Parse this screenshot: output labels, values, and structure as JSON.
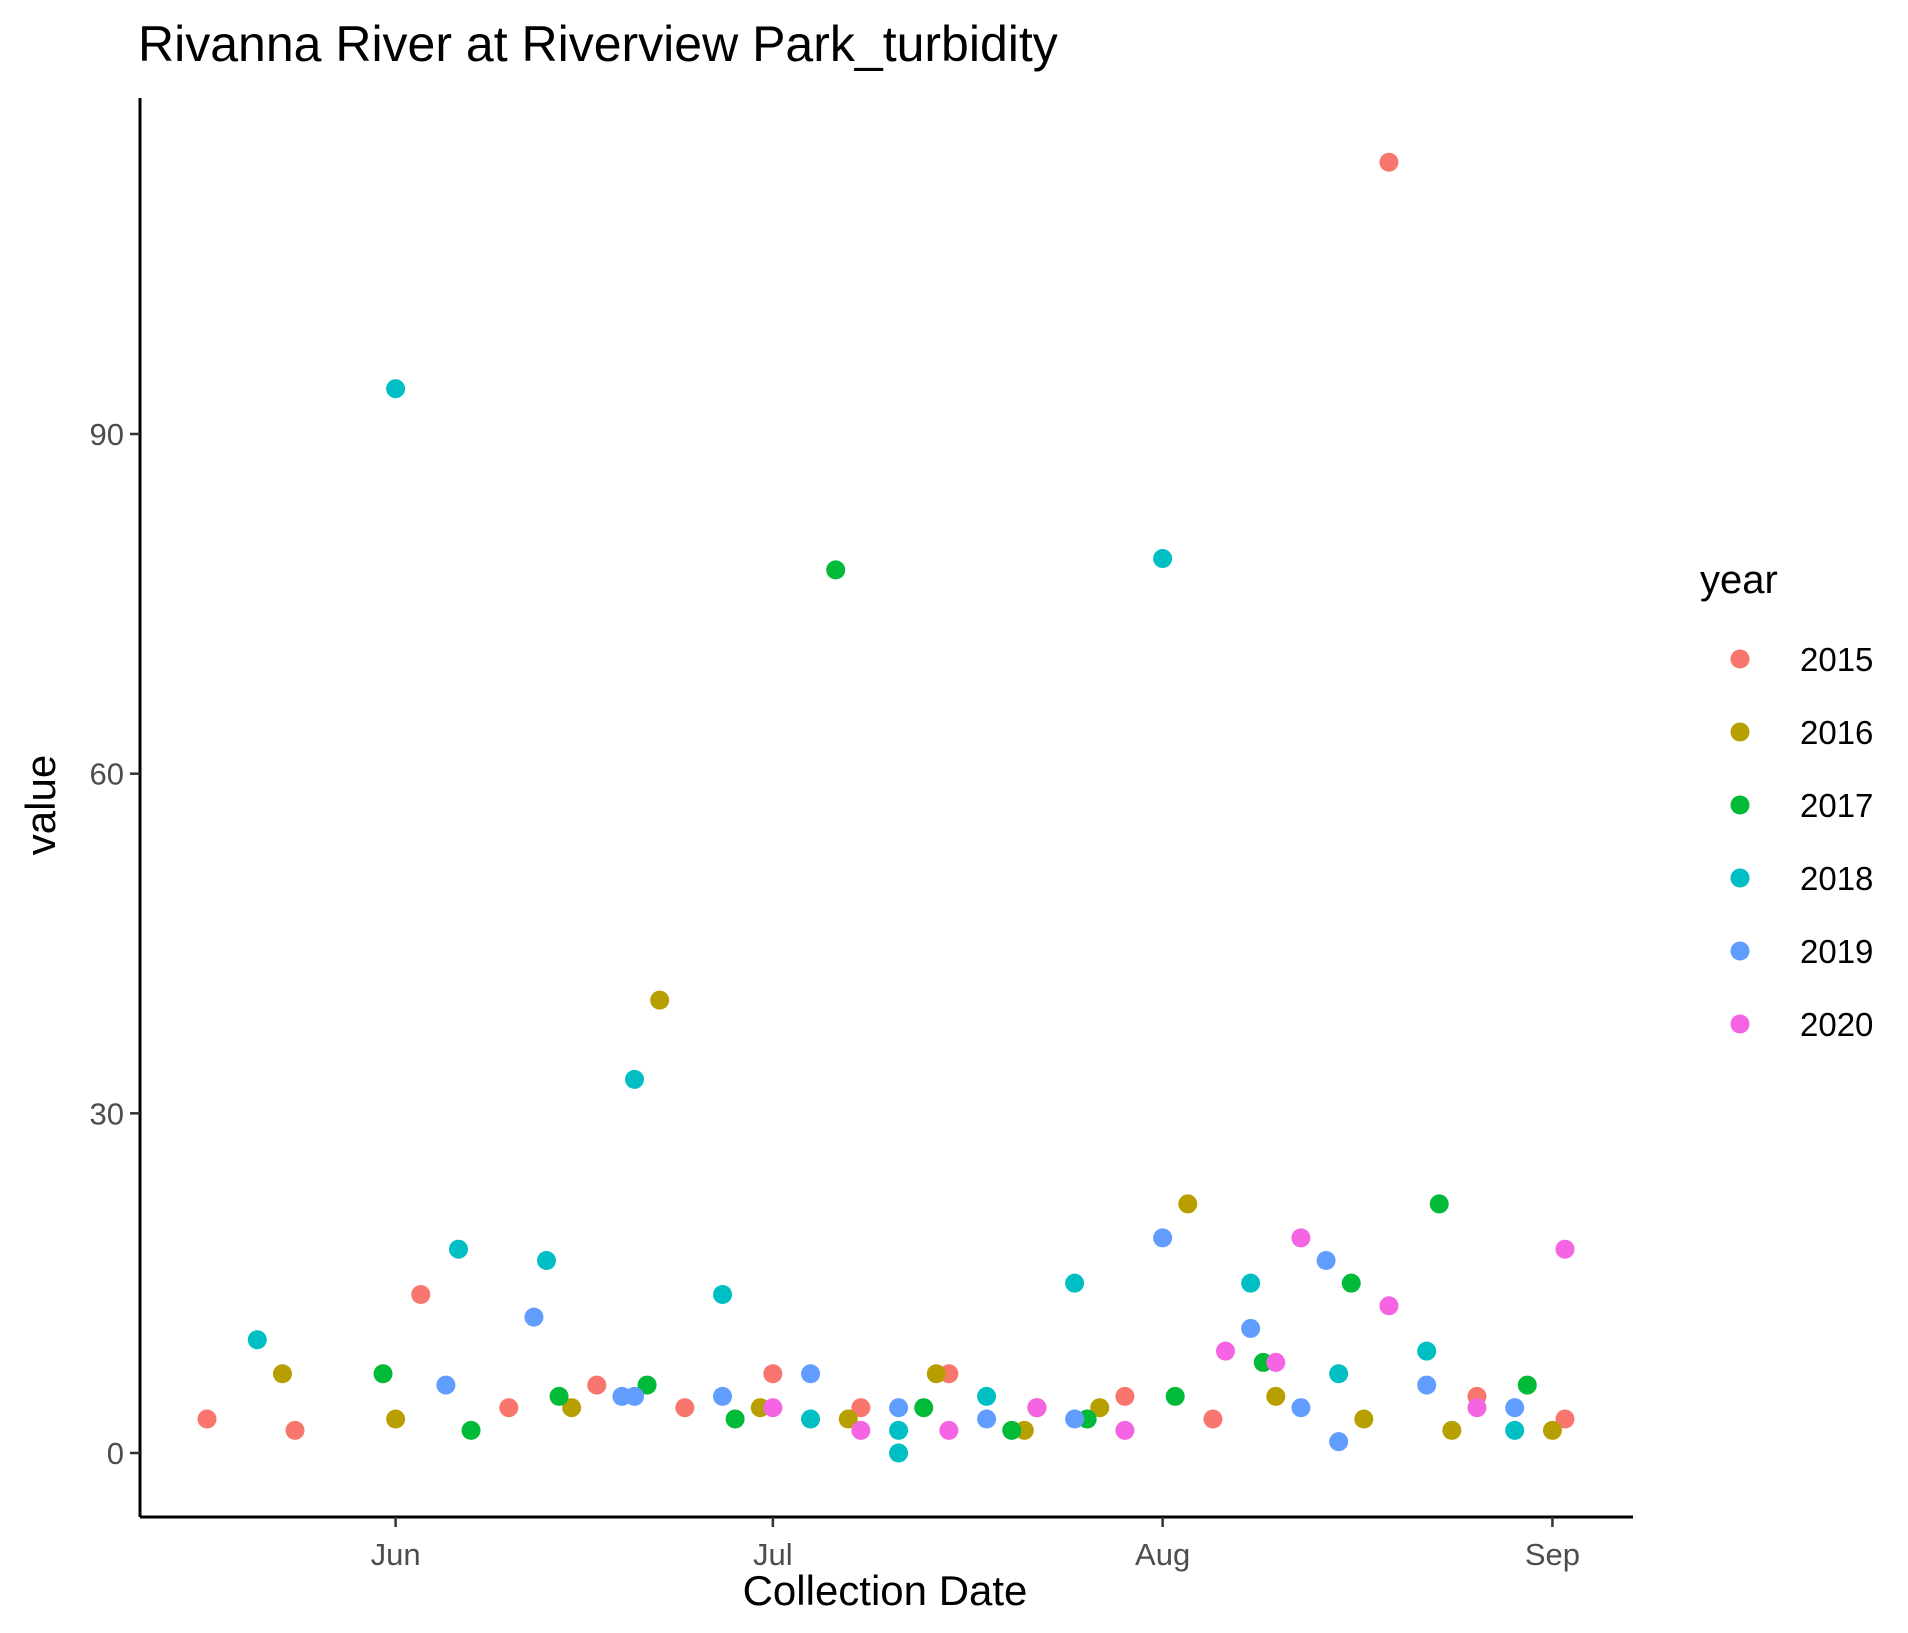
{
  "chart_data": {
    "type": "scatter",
    "title": "Rivanna River at Riverview Park_turbidity",
    "xlabel": "Collection Date",
    "ylabel": "value",
    "x_axis_type": "date (day of year, month ticks)",
    "x_ticks": [
      {
        "label": "Jun",
        "date": "06-01"
      },
      {
        "label": "Jul",
        "date": "07-01"
      },
      {
        "label": "Aug",
        "date": "08-01"
      },
      {
        "label": "Sep",
        "date": "09-01"
      }
    ],
    "y_ticks": [
      0,
      30,
      60,
      90
    ],
    "xlim": [
      "05-20",
      "09-04"
    ],
    "ylim": [
      -6,
      119
    ],
    "grid": false,
    "legend": {
      "title": "year",
      "position": "right"
    },
    "series": [
      {
        "name": "2015",
        "color": "#F8766D",
        "points": [
          {
            "x": "05-17",
            "y": 3
          },
          {
            "x": "05-24",
            "y": 2
          },
          {
            "x": "06-03",
            "y": 14
          },
          {
            "x": "06-10",
            "y": 4
          },
          {
            "x": "06-17",
            "y": 6
          },
          {
            "x": "06-24",
            "y": 4
          },
          {
            "x": "07-01",
            "y": 7
          },
          {
            "x": "07-08",
            "y": 4
          },
          {
            "x": "07-15",
            "y": 7
          },
          {
            "x": "07-22",
            "y": 4
          },
          {
            "x": "07-29",
            "y": 5
          },
          {
            "x": "08-05",
            "y": 3
          },
          {
            "x": "08-19",
            "y": 114
          },
          {
            "x": "08-26",
            "y": 5
          },
          {
            "x": "09-02",
            "y": 3
          }
        ]
      },
      {
        "name": "2016",
        "color": "#B79F00",
        "points": [
          {
            "x": "05-23",
            "y": 7
          },
          {
            "x": "06-01",
            "y": 3
          },
          {
            "x": "06-15",
            "y": 4
          },
          {
            "x": "06-22",
            "y": 40
          },
          {
            "x": "06-30",
            "y": 4
          },
          {
            "x": "07-07",
            "y": 3
          },
          {
            "x": "07-14",
            "y": 7
          },
          {
            "x": "07-21",
            "y": 2
          },
          {
            "x": "07-22",
            "y": 4
          },
          {
            "x": "07-27",
            "y": 4
          },
          {
            "x": "08-03",
            "y": 22
          },
          {
            "x": "08-10",
            "y": 5
          },
          {
            "x": "08-17",
            "y": 3
          },
          {
            "x": "08-24",
            "y": 2
          },
          {
            "x": "09-01",
            "y": 2
          }
        ]
      },
      {
        "name": "2017",
        "color": "#00BA38",
        "points": [
          {
            "x": "05-31",
            "y": 7
          },
          {
            "x": "06-07",
            "y": 2
          },
          {
            "x": "06-14",
            "y": 5
          },
          {
            "x": "06-21",
            "y": 6
          },
          {
            "x": "06-28",
            "y": 3
          },
          {
            "x": "07-06",
            "y": 78
          },
          {
            "x": "07-13",
            "y": 4
          },
          {
            "x": "07-20",
            "y": 2
          },
          {
            "x": "07-26",
            "y": 3
          },
          {
            "x": "08-02",
            "y": 5
          },
          {
            "x": "08-09",
            "y": 8
          },
          {
            "x": "08-16",
            "y": 15
          },
          {
            "x": "08-23",
            "y": 22
          },
          {
            "x": "08-30",
            "y": 6
          }
        ]
      },
      {
        "name": "2018",
        "color": "#00BFC4",
        "points": [
          {
            "x": "05-21",
            "y": 10
          },
          {
            "x": "06-01",
            "y": 94
          },
          {
            "x": "06-06",
            "y": 18
          },
          {
            "x": "06-13",
            "y": 17
          },
          {
            "x": "06-20",
            "y": 33
          },
          {
            "x": "06-27",
            "y": 14
          },
          {
            "x": "07-04",
            "y": 3
          },
          {
            "x": "07-11",
            "y": 0
          },
          {
            "x": "07-11",
            "y": 2
          },
          {
            "x": "07-18",
            "y": 5
          },
          {
            "x": "07-25",
            "y": 15
          },
          {
            "x": "08-01",
            "y": 79
          },
          {
            "x": "08-08",
            "y": 15
          },
          {
            "x": "08-15",
            "y": 7
          },
          {
            "x": "08-22",
            "y": 9
          },
          {
            "x": "08-29",
            "y": 2
          }
        ]
      },
      {
        "name": "2019",
        "color": "#619CFF",
        "points": [
          {
            "x": "06-05",
            "y": 6
          },
          {
            "x": "06-12",
            "y": 12
          },
          {
            "x": "06-19",
            "y": 5
          },
          {
            "x": "06-20",
            "y": 5
          },
          {
            "x": "06-27",
            "y": 5
          },
          {
            "x": "07-04",
            "y": 7
          },
          {
            "x": "07-11",
            "y": 4
          },
          {
            "x": "07-18",
            "y": 3
          },
          {
            "x": "07-25",
            "y": 3
          },
          {
            "x": "08-01",
            "y": 19
          },
          {
            "x": "08-08",
            "y": 11
          },
          {
            "x": "08-12",
            "y": 4
          },
          {
            "x": "08-14",
            "y": 17
          },
          {
            "x": "08-15",
            "y": 1
          },
          {
            "x": "08-22",
            "y": 6
          },
          {
            "x": "08-29",
            "y": 4
          }
        ]
      },
      {
        "name": "2020",
        "color": "#F564E3",
        "points": [
          {
            "x": "07-01",
            "y": 4
          },
          {
            "x": "07-08",
            "y": 2
          },
          {
            "x": "07-15",
            "y": 2
          },
          {
            "x": "07-22",
            "y": 4
          },
          {
            "x": "07-29",
            "y": 2
          },
          {
            "x": "08-06",
            "y": 9
          },
          {
            "x": "08-10",
            "y": 8
          },
          {
            "x": "08-12",
            "y": 19
          },
          {
            "x": "08-19",
            "y": 13
          },
          {
            "x": "08-26",
            "y": 4
          },
          {
            "x": "09-02",
            "y": 18
          }
        ]
      }
    ]
  }
}
